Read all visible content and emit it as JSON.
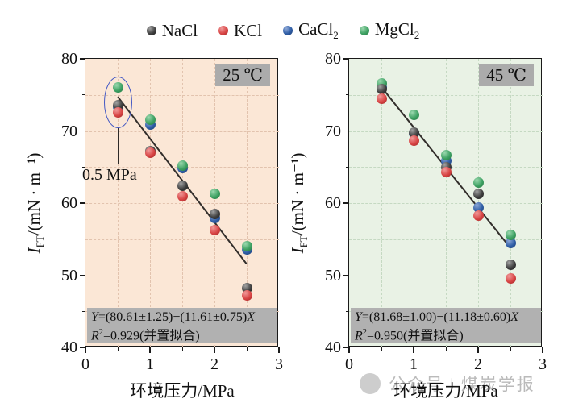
{
  "legend": {
    "items": [
      {
        "id": "nacl",
        "main": "NaCl",
        "sub": ""
      },
      {
        "id": "kcl",
        "main": "KCl",
        "sub": ""
      },
      {
        "id": "cacl2",
        "main": "CaCl",
        "sub": "2"
      },
      {
        "id": "mgcl2",
        "main": "MgCl",
        "sub": "2"
      }
    ]
  },
  "colors": {
    "NaCl": {
      "hi": "#a2a2a2",
      "base": "#3f3f3f",
      "dk": "#1c1c1c"
    },
    "KCl": {
      "hi": "#f09a9a",
      "base": "#d84444",
      "dk": "#9c2424"
    },
    "CaCl2": {
      "hi": "#8fa9d8",
      "base": "#2f5ea6",
      "dk": "#1c3c70"
    },
    "MgCl2": {
      "hi": "#9bd8ae",
      "base": "#3ea163",
      "dk": "#23753f"
    }
  },
  "watermark": {
    "text": "公众号 | 煤炭学报"
  },
  "chart_data": [
    {
      "type": "scatter",
      "panel_label": "25 ℃",
      "background": "#fbe7d6",
      "grid_color": "#e2c3ae",
      "xlabel": "环境压力/MPa",
      "ylabel": {
        "italic": "I",
        "sub": "FT",
        "rest": "/(mN · m⁻¹)"
      },
      "xlim": [
        0,
        3
      ],
      "ylim": [
        40,
        80
      ],
      "xticks": [
        0,
        1,
        2,
        3
      ],
      "yticks": [
        40,
        50,
        60,
        70,
        80
      ],
      "xminor": [
        0.5,
        1.5,
        2.5
      ],
      "yminor": [
        45,
        55,
        65,
        75
      ],
      "grid_x": [
        0.5,
        1,
        1.5,
        2,
        2.5
      ],
      "grid_y": [
        45,
        50,
        55,
        60,
        65,
        70,
        75
      ],
      "x": [
        0.5,
        1.0,
        1.5,
        2.0,
        2.5
      ],
      "series": [
        {
          "name": "CaCl2",
          "label": "CaCl2",
          "values": [
            73.4,
            70.9,
            64.9,
            57.9,
            53.6
          ]
        },
        {
          "name": "MgCl2",
          "label": "MgCl2",
          "values": [
            76.0,
            71.6,
            65.2,
            61.3,
            54.0
          ]
        },
        {
          "name": "NaCl",
          "label": "NaCl",
          "values": [
            73.6,
            67.2,
            62.4,
            58.5,
            48.2
          ]
        },
        {
          "name": "KCl",
          "label": "KCl",
          "values": [
            72.6,
            67.0,
            61.0,
            56.3,
            47.2
          ]
        }
      ],
      "fit_line": {
        "x1": 0.5,
        "y1": 74.8,
        "x2": 2.5,
        "y2": 51.6,
        "equation": "Y=(80.61±1.25)−(11.61±0.75)X",
        "r2": "R²=0.929(并置拟合)"
      },
      "annotation": {
        "text": "0.5 MPa",
        "ellipse_cx": 0.51,
        "ellipse_rx": 0.22,
        "ellipse_top": 77.5,
        "ellipse_bottom": 70.4,
        "line_bottom": 65.4,
        "label_x": -0.05,
        "label_y": 65.1
      }
    },
    {
      "type": "scatter",
      "panel_label": "45 ℃",
      "background": "#e9f2e5",
      "grid_color": "#c5d9c2",
      "xlabel": "环境压力/MPa",
      "ylabel": {
        "italic": "I",
        "sub": "FT",
        "rest": "/(mN · m⁻¹)"
      },
      "xlim": [
        0,
        3
      ],
      "ylim": [
        40,
        80
      ],
      "xticks": [
        0,
        1,
        2,
        3
      ],
      "yticks": [
        40,
        50,
        60,
        70,
        80
      ],
      "xminor": [
        0.5,
        1.5,
        2.5
      ],
      "yminor": [
        45,
        55,
        65,
        75
      ],
      "grid_x": [
        0.5,
        1,
        1.5,
        2,
        2.5
      ],
      "grid_y": [
        45,
        50,
        55,
        60,
        65,
        70,
        75
      ],
      "x": [
        0.5,
        1.0,
        1.5,
        2.0,
        2.5
      ],
      "series": [
        {
          "name": "CaCl2",
          "label": "CaCl2",
          "values": [
            76.0,
            69.7,
            65.9,
            59.4,
            54.5
          ]
        },
        {
          "name": "MgCl2",
          "label": "MgCl2",
          "values": [
            76.6,
            72.2,
            66.6,
            62.8,
            55.6
          ]
        },
        {
          "name": "NaCl",
          "label": "NaCl",
          "values": [
            75.8,
            69.8,
            65.0,
            61.3,
            51.4
          ]
        },
        {
          "name": "KCl",
          "label": "KCl",
          "values": [
            74.5,
            68.7,
            64.3,
            58.3,
            49.5
          ]
        }
      ],
      "fit_line": {
        "x1": 0.5,
        "y1": 76.1,
        "x2": 2.5,
        "y2": 53.8,
        "equation": "Y=(81.68±1.00)−(11.18±0.60)X",
        "r2": "R²=0.950(并置拟合)"
      }
    }
  ]
}
